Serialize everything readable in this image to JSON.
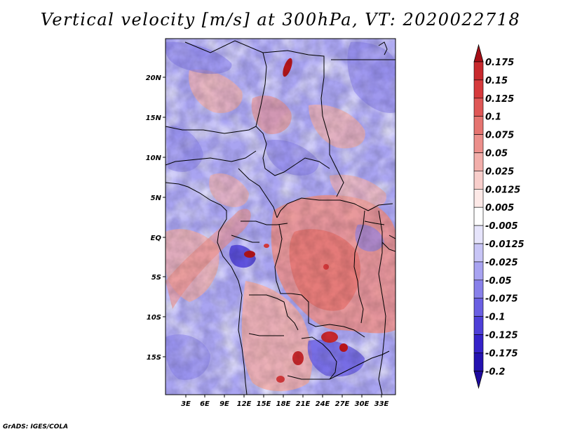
{
  "title": "Vertical velocity [m/s] at 300hPa, VT: 2020022718",
  "credit": "GrADS: IGES/COLA",
  "map": {
    "lat_ticks": [
      "20N",
      "15N",
      "10N",
      "5N",
      "EQ",
      "5S",
      "10S",
      "15S"
    ],
    "lon_ticks": [
      "3E",
      "6E",
      "9E",
      "12E",
      "15E",
      "18E",
      "21E",
      "24E",
      "27E",
      "30E",
      "33E"
    ]
  },
  "colorbar": {
    "levels": [
      {
        "label": "0.175",
        "color": "#b8151b"
      },
      {
        "label": "0.15",
        "color": "#c8292d"
      },
      {
        "label": "0.125",
        "color": "#d63a3c"
      },
      {
        "label": "0.1",
        "color": "#df5756"
      },
      {
        "label": "0.075",
        "color": "#e57470"
      },
      {
        "label": "0.05",
        "color": "#ec8f8b"
      },
      {
        "label": "0.025",
        "color": "#f2aeaa"
      },
      {
        "label": "0.0125",
        "color": "#f8cecb"
      },
      {
        "label": "0.005",
        "color": "#fde9e7"
      },
      {
        "label": "-0.005",
        "color": "#ffffff"
      },
      {
        "label": "-0.0125",
        "color": "#e6e4fb"
      },
      {
        "label": "-0.025",
        "color": "#c8c5f6"
      },
      {
        "label": "-0.05",
        "color": "#a8a3f1"
      },
      {
        "label": "-0.075",
        "color": "#8880ea"
      },
      {
        "label": "-0.1",
        "color": "#6a5fe2"
      },
      {
        "label": "-0.125",
        "color": "#4e3fd8"
      },
      {
        "label": "-0.175",
        "color": "#3522c9"
      },
      {
        "label": "-0.2",
        "color": "#2412b0"
      }
    ],
    "top_arrow_color": "#a60f17",
    "bottom_arrow_color": "#1e0a9e"
  }
}
